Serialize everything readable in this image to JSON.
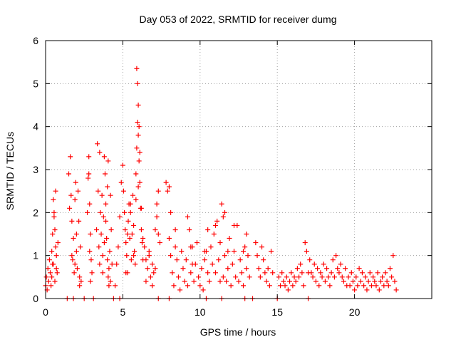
{
  "chart_data": {
    "type": "scatter",
    "title": "Day 053 of 2022, SRMTID for receiver dumg",
    "xlabel": "GPS time / hours",
    "ylabel": "SRMTID / TECUs",
    "xlim": [
      0,
      25
    ],
    "ylim": [
      0,
      6
    ],
    "xticks": [
      0,
      5,
      10,
      15,
      20
    ],
    "yticks": [
      0,
      1,
      2,
      3,
      4,
      5,
      6
    ],
    "xtick_labels": [
      "0",
      "5",
      "10",
      "15",
      "20"
    ],
    "ytick_labels": [
      "0",
      "1",
      "2",
      "3",
      "4",
      "5",
      "6"
    ],
    "grid": true,
    "marker": "+",
    "series": [
      {
        "name": "SRMTID",
        "color": "#ff0000",
        "x": [
          0.0,
          0.05,
          0.1,
          0.15,
          0.2,
          0.25,
          0.3,
          0.35,
          0.4,
          0.45,
          0.5,
          0.55,
          0.6,
          0.65,
          0.7,
          0.75,
          0.8,
          0.4,
          0.5,
          0.6,
          0.65,
          0.7,
          0.55,
          0.45,
          1.5,
          1.6,
          1.65,
          1.7,
          1.75,
          1.8,
          1.85,
          1.9,
          1.95,
          2.0,
          2.05,
          2.1,
          2.15,
          2.2,
          2.25,
          2.3,
          1.55,
          1.7,
          1.9,
          2.0,
          2.2,
          2.7,
          2.75,
          2.8,
          2.85,
          2.9,
          2.95,
          3.0,
          2.8,
          2.85,
          2.9,
          3.3,
          3.35,
          3.4,
          3.45,
          3.5,
          3.55,
          3.6,
          3.65,
          3.7,
          3.75,
          3.8,
          3.85,
          3.9,
          3.95,
          4.0,
          4.05,
          4.1,
          4.15,
          4.2,
          4.25,
          4.3,
          3.5,
          3.7,
          3.9,
          4.0,
          4.1,
          4.2,
          3.8,
          4.05,
          4.5,
          4.6,
          4.7,
          4.8,
          4.9,
          5.0,
          5.05,
          5.1,
          5.15,
          5.2,
          5.25,
          5.3,
          5.35,
          5.4,
          5.45,
          5.5,
          5.55,
          5.6,
          5.65,
          5.7,
          5.75,
          5.8,
          5.85,
          5.9,
          5.95,
          6.0,
          6.05,
          6.1,
          6.15,
          6.2,
          6.25,
          6.3,
          5.9,
          5.95,
          6.0,
          6.05,
          6.1,
          5.85,
          5.2,
          5.3,
          5.5,
          5.7,
          6.0,
          6.2,
          6.3,
          6.4,
          6.5,
          6.6,
          6.7,
          6.8,
          6.9,
          7.0,
          7.1,
          7.2,
          7.3,
          7.4,
          6.5,
          6.7,
          6.9,
          7.1,
          7.2,
          7.3,
          7.8,
          7.9,
          8.0,
          8.1,
          8.2,
          8.3,
          8.4,
          8.5,
          8.6,
          8.7,
          8.8,
          8.9,
          9.0,
          9.1,
          9.2,
          9.3,
          9.4,
          9.5,
          9.6,
          9.7,
          9.8,
          9.9,
          10.0,
          10.1,
          10.2,
          10.3,
          10.4,
          10.5,
          10.6,
          10.7,
          10.8,
          10.9,
          11.0,
          11.1,
          11.2,
          11.3,
          11.4,
          11.5,
          11.6,
          11.7,
          11.8,
          11.9,
          12.0,
          12.1,
          12.2,
          12.3,
          12.4,
          12.5,
          12.6,
          12.7,
          12.8,
          12.9,
          13.0,
          13.1,
          13.2,
          8.0,
          8.1,
          8.4,
          9.2,
          9.4,
          9.5,
          10.3,
          10.5,
          11.0,
          11.3,
          11.5,
          11.6,
          11.8,
          12.2,
          12.8,
          13.0,
          13.6,
          13.7,
          13.8,
          13.9,
          14.0,
          14.1,
          14.2,
          14.3,
          14.4,
          14.5,
          14.6,
          14.7,
          15.1,
          15.2,
          15.3,
          15.4,
          15.5,
          15.6,
          15.7,
          15.8,
          15.9,
          16.0,
          16.1,
          16.2,
          16.3,
          16.4,
          16.5,
          16.6,
          16.7,
          16.8,
          16.9,
          17.0,
          17.1,
          17.2,
          17.3,
          17.4,
          17.5,
          17.6,
          17.7,
          17.8,
          17.9,
          18.0,
          18.1,
          18.2,
          18.3,
          18.4,
          18.5,
          18.6,
          18.7,
          18.8,
          18.9,
          19.0,
          19.1,
          19.2,
          19.3,
          19.4,
          19.5,
          19.6,
          19.7,
          19.8,
          19.9,
          20.0,
          20.1,
          20.2,
          20.3,
          20.4,
          20.5,
          20.6,
          20.7,
          20.8,
          20.9,
          21.0,
          21.1,
          21.2,
          21.3,
          21.4,
          21.5,
          21.6,
          21.7,
          21.8,
          21.9,
          22.0,
          22.1,
          22.2,
          22.3,
          22.4,
          22.5,
          22.6,
          22.7,
          1.4,
          1.8,
          2.5,
          3.1,
          4.4,
          4.8,
          7.3,
          8.0,
          10.4,
          11.4,
          12.9,
          13.4,
          15.0,
          17.0
        ],
        "y": [
          0.3,
          0.5,
          0.2,
          0.7,
          0.4,
          0.9,
          0.6,
          0.3,
          1.1,
          0.8,
          2.3,
          1.9,
          1.6,
          2.5,
          1.0,
          0.6,
          1.3,
          0.5,
          0.8,
          0.4,
          1.2,
          0.7,
          2.0,
          1.5,
          2.9,
          3.3,
          2.4,
          1.8,
          0.9,
          1.4,
          0.6,
          2.3,
          2.7,
          1.1,
          0.7,
          2.5,
          1.8,
          0.5,
          1.2,
          0.4,
          2.1,
          1.0,
          0.8,
          1.5,
          0.3,
          2.0,
          2.8,
          3.3,
          2.2,
          1.5,
          0.9,
          0.6,
          2.9,
          1.1,
          0.4,
          1.6,
          3.6,
          2.5,
          1.2,
          0.8,
          2.0,
          1.5,
          2.4,
          0.6,
          1.9,
          3.3,
          2.9,
          2.2,
          1.4,
          0.9,
          0.5,
          0.3,
          1.1,
          2.4,
          1.6,
          0.8,
          3.4,
          1.0,
          1.8,
          2.6,
          0.7,
          0.4,
          1.3,
          3.2,
          0.3,
          0.8,
          1.2,
          1.9,
          2.7,
          3.1,
          2.5,
          2.0,
          1.6,
          1.3,
          1.0,
          0.6,
          1.8,
          2.2,
          1.4,
          2.0,
          0.9,
          1.5,
          2.4,
          1.7,
          1.1,
          0.8,
          2.9,
          3.5,
          4.1,
          3.8,
          3.2,
          2.7,
          2.1,
          1.6,
          1.3,
          0.9,
          5.35,
          5.0,
          4.5,
          4.0,
          3.4,
          2.3,
          0.6,
          1.5,
          2.2,
          1.0,
          2.6,
          2.1,
          1.4,
          1.2,
          0.9,
          0.7,
          1.1,
          0.5,
          0.8,
          0.6,
          1.6,
          1.9,
          2.5,
          1.3,
          0.4,
          1.0,
          0.3,
          0.7,
          2.2,
          1.5,
          2.7,
          2.5,
          1.4,
          1.0,
          0.6,
          0.3,
          1.2,
          0.9,
          0.5,
          0.2,
          1.1,
          0.7,
          0.4,
          0.9,
          0.3,
          1.6,
          0.6,
          1.2,
          0.4,
          0.8,
          1.3,
          0.5,
          0.3,
          0.7,
          0.2,
          0.9,
          1.1,
          0.6,
          0.4,
          1.2,
          0.8,
          1.5,
          0.6,
          1.8,
          0.9,
          1.3,
          2.2,
          0.5,
          1.0,
          0.4,
          0.7,
          1.4,
          0.3,
          0.8,
          1.1,
          0.5,
          1.7,
          0.4,
          0.9,
          0.6,
          0.3,
          1.2,
          0.7,
          1.0,
          0.5,
          2.6,
          2.0,
          1.6,
          1.9,
          1.2,
          0.8,
          1.1,
          1.6,
          1.7,
          0.4,
          1.9,
          2.0,
          1.1,
          1.7,
          1.1,
          1.5,
          1.3,
          1.0,
          0.7,
          0.5,
          1.2,
          0.9,
          0.6,
          0.4,
          0.7,
          0.3,
          1.1,
          0.6,
          0.5,
          0.3,
          0.6,
          0.4,
          0.3,
          0.5,
          0.2,
          0.4,
          0.6,
          0.3,
          0.5,
          0.4,
          0.7,
          0.5,
          0.8,
          0.6,
          0.3,
          1.3,
          1.1,
          0.6,
          0.9,
          0.6,
          0.5,
          0.8,
          0.4,
          0.7,
          0.3,
          0.6,
          0.5,
          0.8,
          0.4,
          0.7,
          0.5,
          0.3,
          0.6,
          0.9,
          0.5,
          1.0,
          0.7,
          0.6,
          0.8,
          0.5,
          0.4,
          0.7,
          0.3,
          0.5,
          0.3,
          0.6,
          0.4,
          0.2,
          0.5,
          0.3,
          0.7,
          0.4,
          0.6,
          0.3,
          0.5,
          0.2,
          0.4,
          0.6,
          0.3,
          0.5,
          0.4,
          0.3,
          0.6,
          0.2,
          0.4,
          0.5,
          0.3,
          0.6,
          0.4,
          0.3,
          0.7,
          0.5,
          1.0,
          0.4,
          0.2,
          0.0,
          0.0,
          0.0,
          0.0,
          0.0,
          0.0,
          0.0,
          0.0,
          0.0,
          0.0,
          0.0,
          0.0,
          0.0,
          0.0
        ]
      }
    ]
  }
}
